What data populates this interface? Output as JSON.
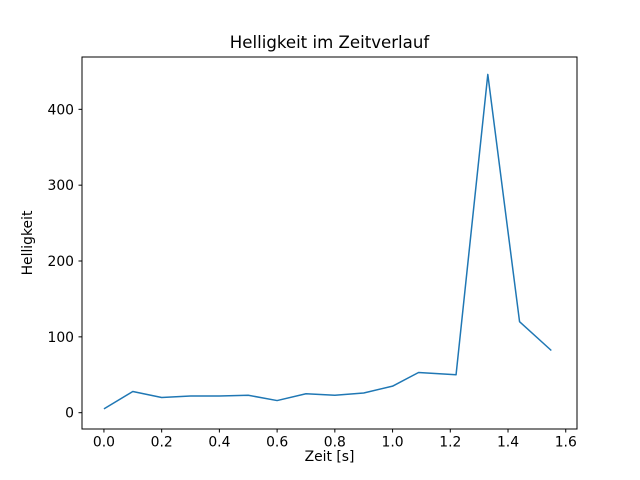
{
  "chart_data": {
    "type": "line",
    "title": "Helligkeit im Zeitverlauf",
    "xlabel": "Zeit [s]",
    "ylabel": "Helligkeit",
    "x": [
      0.0,
      0.1,
      0.2,
      0.3,
      0.4,
      0.5,
      0.6,
      0.7,
      0.8,
      0.9,
      1.0,
      1.09,
      1.22,
      1.33,
      1.44,
      1.55
    ],
    "y": [
      5,
      28,
      20,
      22,
      22,
      23,
      16,
      25,
      23,
      26,
      35,
      53,
      50,
      446,
      120,
      82
    ],
    "xtick_labels": [
      "0.0",
      "0.2",
      "0.4",
      "0.6",
      "0.8",
      "1.0",
      "1.2",
      "1.4",
      "1.6"
    ],
    "xtick_values": [
      0.0,
      0.2,
      0.4,
      0.6,
      0.8,
      1.0,
      1.2,
      1.4,
      1.6
    ],
    "ytick_labels": [
      "0",
      "100",
      "200",
      "300",
      "400"
    ],
    "ytick_values": [
      0,
      100,
      200,
      300,
      400
    ],
    "xlim": [
      -0.076,
      1.639
    ],
    "ylim": [
      -21.5,
      469
    ],
    "line_color": "#1f77b4",
    "line_width": 1.5,
    "axis_color": "#000000",
    "text_color": "#000000",
    "background_color": "#ffffff",
    "grid": false,
    "legend_position": "none"
  }
}
